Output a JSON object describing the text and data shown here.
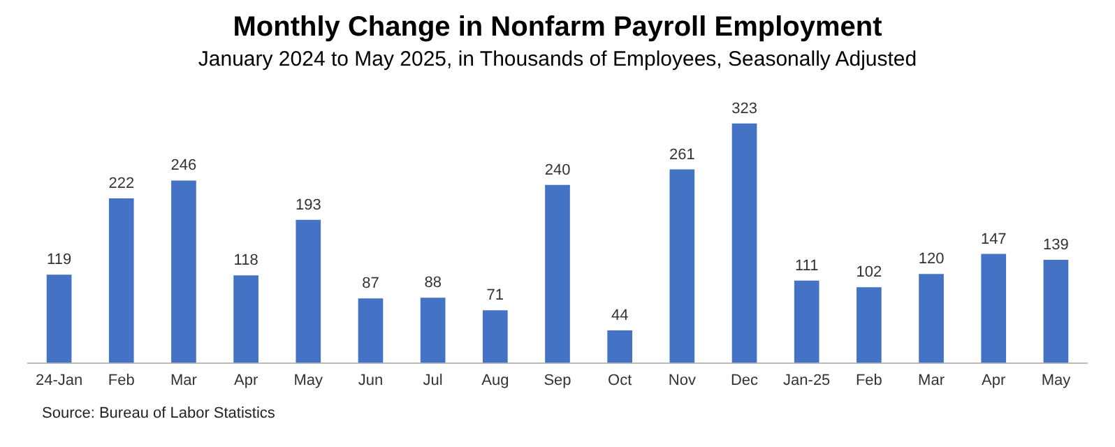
{
  "chart_data": {
    "type": "bar",
    "title": "Monthly Change in Nonfarm Payroll Employment",
    "subtitle": "January 2024 to May 2025, in Thousands of Employees, Seasonally Adjusted",
    "categories": [
      "24-Jan",
      "Feb",
      "Mar",
      "Apr",
      "May",
      "Jun",
      "Jul",
      "Aug",
      "Sep",
      "Oct",
      "Nov",
      "Dec",
      "Jan-25",
      "Feb",
      "Mar",
      "Apr",
      "May"
    ],
    "values": [
      119,
      222,
      246,
      118,
      193,
      87,
      88,
      71,
      240,
      44,
      261,
      323,
      111,
      102,
      120,
      147,
      139
    ],
    "color": "#4472c4",
    "data_labels": true,
    "grid": false,
    "legend": false,
    "annotations": [
      "Source: Bureau of Labor Statistics"
    ]
  }
}
